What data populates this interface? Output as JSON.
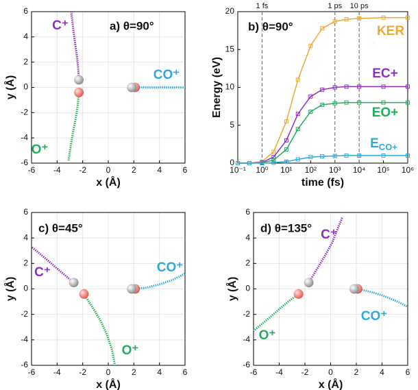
{
  "chart_data": [
    {
      "type": "trajectory",
      "title": "a)  θ=90°",
      "x_label": "x (Å)",
      "y_label": "y (Å)",
      "xlim": [
        -6,
        6
      ],
      "ylim": [
        -6,
        6
      ],
      "xticks": [
        -6,
        -4,
        -2,
        0,
        2,
        4,
        6
      ],
      "yticks": [
        -6,
        -4,
        -2,
        0,
        2,
        4,
        6
      ],
      "grid": true,
      "series": [
        {
          "name": "C⁺",
          "color": "#8a2fc4",
          "x": [
            -2.3,
            -2.35,
            -2.45,
            -2.6,
            -2.75,
            -2.9
          ],
          "values": [
            0.6,
            1.5,
            2.5,
            3.5,
            4.7,
            6
          ]
        },
        {
          "name": "O⁺",
          "color": "#22ad5c",
          "x": [
            -2.3,
            -2.4,
            -2.55,
            -2.75,
            -2.95,
            -3.1
          ],
          "values": [
            -0.4,
            -1.5,
            -2.5,
            -3.5,
            -4.7,
            -5.8
          ]
        },
        {
          "name": "CO⁺",
          "color": "#2aa9e0",
          "x": [
            2.1,
            3,
            4,
            5,
            6
          ],
          "values": [
            0,
            0,
            0,
            0,
            0
          ]
        }
      ]
    },
    {
      "type": "energy",
      "title": "b)  θ=90°",
      "x_label": "time (fs)",
      "y_label": "Energy (eV)",
      "xscale": "log",
      "xlim": [
        0.1,
        1000000
      ],
      "ylim": [
        0,
        20
      ],
      "xticks": [
        {
          "value": 0.1,
          "label": "10⁻¹"
        },
        {
          "value": 1,
          "label": "10⁰"
        },
        {
          "value": 10,
          "label": "10¹"
        },
        {
          "value": 100,
          "label": "10²"
        },
        {
          "value": 1000,
          "label": "10³"
        },
        {
          "value": 10000,
          "label": "10⁴"
        },
        {
          "value": 100000,
          "label": "10⁵"
        },
        {
          "value": 1000000,
          "label": "10⁶"
        }
      ],
      "yticks": [
        0,
        5,
        10,
        15,
        20
      ],
      "grid": false,
      "annotations": [
        {
          "x": 1,
          "label": "1 fs"
        },
        {
          "x": 1000,
          "label": "1 ps"
        },
        {
          "x": 10000,
          "label": "10 ps"
        }
      ],
      "x": [
        0.1,
        0.3,
        1,
        3,
        10,
        30,
        100,
        300,
        1000,
        3000,
        10000,
        100000,
        1000000
      ],
      "series": [
        {
          "name": "KER",
          "color": "#f0a830",
          "values": [
            0,
            0,
            0.2,
            1.5,
            5.5,
            11,
            15.5,
            17.8,
            18.7,
            19,
            19.1,
            19.2,
            19.2
          ]
        },
        {
          "name": "EC+",
          "color": "#8a2fc4",
          "values": [
            0,
            0,
            0.1,
            0.8,
            3,
            6.5,
            8.8,
            9.7,
            10,
            10.1,
            10.1,
            10.1,
            10.1
          ]
        },
        {
          "name": "EO+",
          "color": "#22ad5c",
          "values": [
            0,
            0,
            0.05,
            0.4,
            1.8,
            4.5,
            6.8,
            7.7,
            7.9,
            8,
            8,
            8,
            8
          ]
        },
        {
          "name": "ECO+",
          "color": "#2aa9e0",
          "values": [
            0,
            0,
            0,
            0.05,
            0.2,
            0.5,
            0.8,
            0.9,
            0.95,
            1,
            1,
            1,
            1
          ]
        }
      ]
    },
    {
      "type": "trajectory",
      "title": "c)  θ=45°",
      "x_label": "x (Å)",
      "y_label": "y (Å)",
      "xlim": [
        -6,
        6
      ],
      "ylim": [
        -6,
        6
      ],
      "xticks": [
        -6,
        -4,
        -2,
        0,
        2,
        4,
        6
      ],
      "yticks": [
        -6,
        -4,
        -2,
        0,
        2,
        4,
        6
      ],
      "grid": true,
      "series": [
        {
          "name": "C⁺",
          "color": "#8a2fc4",
          "x": [
            -2.7,
            -3.3,
            -4,
            -4.8,
            -6
          ],
          "values": [
            0.5,
            1,
            1.6,
            2.3,
            3.3
          ]
        },
        {
          "name": "O⁺",
          "color": "#22ad5c",
          "x": [
            -1.9,
            -1.2,
            -0.6,
            -0.1,
            0.3,
            0.5
          ],
          "values": [
            -0.4,
            -1.5,
            -2.5,
            -3.6,
            -4.8,
            -5.9
          ]
        },
        {
          "name": "CO⁺",
          "color": "#2aa9e0",
          "x": [
            2.1,
            3,
            4,
            5,
            6
          ],
          "values": [
            0,
            0.1,
            0.35,
            0.7,
            1.2
          ]
        }
      ]
    },
    {
      "type": "trajectory",
      "title": "d)  θ=135°",
      "x_label": "x (Å)",
      "y_label": "y (Å)",
      "xlim": [
        -6,
        6
      ],
      "ylim": [
        -6,
        6
      ],
      "xticks": [
        -6,
        -4,
        -2,
        0,
        2,
        4,
        6
      ],
      "yticks": [
        -6,
        -4,
        -2,
        0,
        2,
        4,
        6
      ],
      "grid": true,
      "series": [
        {
          "name": "C⁺",
          "color": "#8a2fc4",
          "x": [
            -1.7,
            -1.1,
            -0.5,
            0.1,
            0.5,
            0.9
          ],
          "values": [
            0.5,
            1.5,
            2.5,
            3.6,
            4.6,
            5.6
          ]
        },
        {
          "name": "O⁺",
          "color": "#22ad5c",
          "x": [
            -2.5,
            -3.3,
            -4,
            -4.8,
            -6
          ],
          "values": [
            -0.4,
            -1,
            -1.6,
            -2.3,
            -3.3
          ]
        },
        {
          "name": "CO⁺",
          "color": "#2aa9e0",
          "x": [
            2.1,
            3,
            4,
            5,
            6
          ],
          "values": [
            0,
            -0.2,
            -0.5,
            -0.9,
            -1.4
          ]
        }
      ]
    }
  ]
}
